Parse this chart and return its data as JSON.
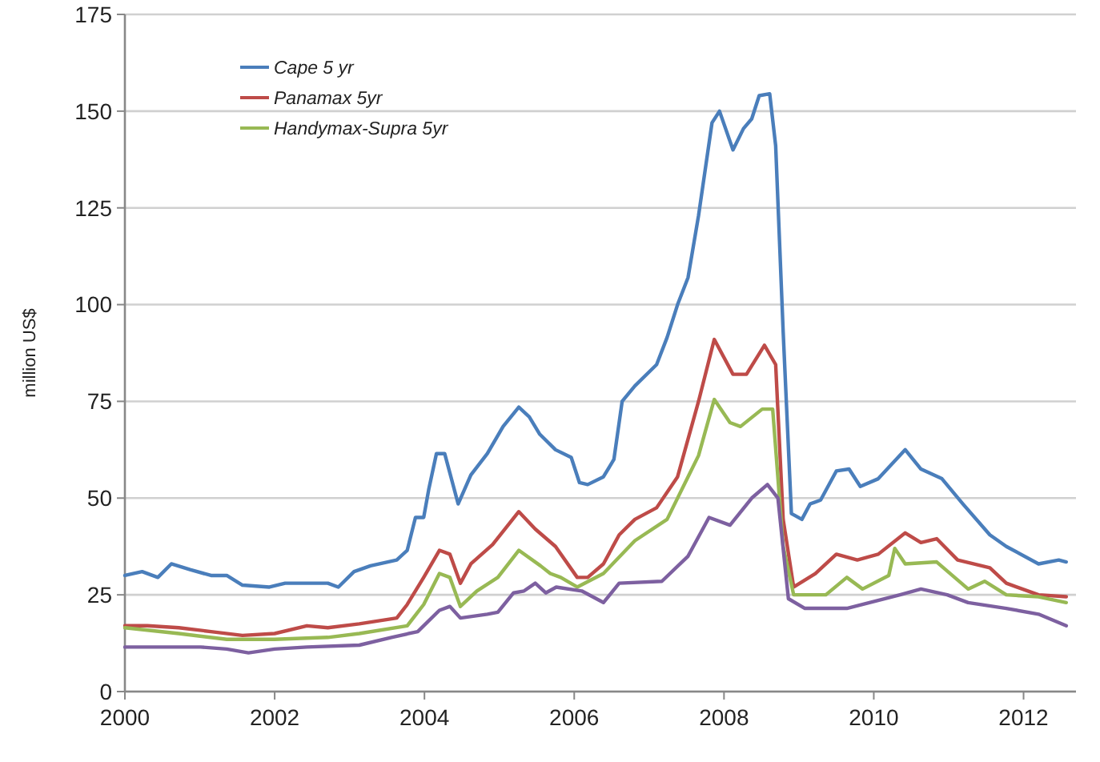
{
  "chart_data": {
    "type": "line",
    "ylabel": "million US$",
    "xlim": [
      2000,
      2012.7
    ],
    "xticks": [
      2000,
      2002,
      2004,
      2006,
      2008,
      2010,
      2012
    ],
    "ylim": [
      0,
      175
    ],
    "yticks": [
      0,
      25,
      50,
      75,
      100,
      125,
      150,
      175
    ],
    "grid": "y",
    "legend": "top left",
    "marker": "none",
    "line_style": "solid",
    "series": [
      {
        "name": "Cape 5 yr",
        "color": "#4a7ebb",
        "x": [
          2000,
          2000.23,
          2000.44,
          2000.62,
          2000.87,
          2001.15,
          2001.36,
          2001.57,
          2001.93,
          2002.14,
          2002.71,
          2002.85,
          2003.06,
          2003.28,
          2003.63,
          2003.77,
          2003.88,
          2003.99,
          2004.06,
          2004.16,
          2004.27,
          2004.45,
          2004.62,
          2004.84,
          2005.05,
          2005.26,
          2005.4,
          2005.54,
          2005.75,
          2005.96,
          2006.07,
          2006.18,
          2006.39,
          2006.53,
          2006.64,
          2006.81,
          2007.1,
          2007.24,
          2007.38,
          2007.52,
          2007.66,
          2007.84,
          2007.94,
          2008.12,
          2008.26,
          2008.37,
          2008.47,
          2008.61,
          2008.69,
          2008.79,
          2008.9,
          2009.04,
          2009.15,
          2009.29,
          2009.5,
          2009.67,
          2009.82,
          2010.06,
          2010.42,
          2010.63,
          2010.91,
          2011.19,
          2011.55,
          2011.77,
          2012.2,
          2012.47,
          2012.57
        ],
        "values": [
          30,
          31,
          29.5,
          33,
          31.5,
          30,
          30,
          27.5,
          27,
          28,
          28,
          27,
          31,
          32.5,
          34,
          36.5,
          45,
          45,
          52.5,
          61.5,
          61.5,
          48.5,
          56,
          61.5,
          68.5,
          73.5,
          71,
          66.5,
          62.5,
          60.5,
          54,
          53.5,
          55.5,
          60,
          75,
          79,
          84.5,
          91.5,
          100,
          107,
          123,
          147,
          150,
          140,
          145.5,
          148,
          154,
          154.5,
          141,
          93,
          46,
          44.5,
          48.5,
          49.5,
          57,
          57.5,
          53,
          55,
          62.5,
          57.5,
          55,
          48.5,
          40.5,
          37.5,
          33,
          34,
          33.5
        ]
      },
      {
        "name": "Panamax 5yr",
        "color": "#be4b48",
        "x": [
          2000,
          2000.3,
          2000.72,
          2001.15,
          2001.57,
          2002,
          2002.43,
          2002.71,
          2003.13,
          2003.63,
          2003.77,
          2003.99,
          2004.2,
          2004.34,
          2004.48,
          2004.62,
          2004.91,
          2005.26,
          2005.48,
          2005.75,
          2006.04,
          2006.18,
          2006.39,
          2006.6,
          2006.81,
          2007.1,
          2007.38,
          2007.66,
          2007.87,
          2008.12,
          2008.3,
          2008.54,
          2008.69,
          2008.79,
          2008.93,
          2009.22,
          2009.5,
          2009.78,
          2010.06,
          2010.42,
          2010.63,
          2010.84,
          2011.12,
          2011.55,
          2011.77,
          2012.2,
          2012.57
        ],
        "values": [
          17,
          17,
          16.5,
          15.5,
          14.5,
          15,
          17,
          16.5,
          17.5,
          19,
          22.5,
          29.5,
          36.5,
          35.5,
          28,
          33,
          38,
          46.5,
          42,
          37.5,
          29.5,
          29.5,
          33,
          40.5,
          44.5,
          47.5,
          55.5,
          75,
          91,
          82,
          82,
          89.5,
          84.5,
          44.5,
          27,
          30.5,
          35.5,
          34,
          35.5,
          41,
          38.5,
          39.5,
          34,
          32,
          28,
          25,
          24.5
        ]
      },
      {
        "name": "Handymax-Supra 5yr",
        "color": "#98b954",
        "x": [
          2000,
          2000.72,
          2001.36,
          2002,
          2002.71,
          2003.13,
          2003.77,
          2003.99,
          2004.2,
          2004.34,
          2004.48,
          2004.7,
          2004.98,
          2005.26,
          2005.55,
          2005.68,
          2005.82,
          2006.04,
          2006.39,
          2006.81,
          2007.24,
          2007.52,
          2007.66,
          2007.87,
          2008.08,
          2008.22,
          2008.51,
          2008.65,
          2008.79,
          2008.93,
          2009.36,
          2009.64,
          2009.85,
          2010.2,
          2010.28,
          2010.42,
          2010.84,
          2011.26,
          2011.48,
          2011.77,
          2012.2,
          2012.57
        ],
        "values": [
          16.5,
          15,
          13.5,
          13.5,
          14,
          15,
          17,
          22.5,
          30.5,
          29.5,
          22,
          26,
          29.5,
          36.5,
          32.5,
          30.5,
          29.5,
          27,
          30.5,
          39,
          44.5,
          55.5,
          61,
          75.5,
          69.5,
          68.5,
          73,
          73,
          37.5,
          25,
          25,
          29.5,
          26.5,
          30,
          37,
          33,
          33.5,
          26.5,
          28.5,
          25,
          24.5,
          23
        ]
      },
      {
        "color": "#7d60a0",
        "x": [
          2000,
          2001.01,
          2001.36,
          2001.65,
          2002,
          2002.43,
          2003.13,
          2003.56,
          2003.91,
          2004.2,
          2004.34,
          2004.48,
          2004.84,
          2004.98,
          2005.19,
          2005.33,
          2005.48,
          2005.62,
          2005.76,
          2006.1,
          2006.39,
          2006.6,
          2007.17,
          2007.52,
          2007.8,
          2008.08,
          2008.37,
          2008.58,
          2008.72,
          2008.86,
          2009.08,
          2009.64,
          2010.35,
          2010.63,
          2010.98,
          2011.26,
          2011.77,
          2012.2,
          2012.57
        ],
        "values": [
          11.5,
          11.5,
          11,
          10,
          11,
          11.5,
          12,
          14,
          15.5,
          21,
          22,
          19,
          20,
          20.5,
          25.5,
          26,
          28,
          25.5,
          27,
          26,
          23,
          28,
          28.5,
          35,
          45,
          43,
          50,
          53.5,
          50,
          24,
          21.5,
          21.5,
          25,
          26.5,
          25,
          23,
          21.5,
          20,
          17
        ]
      }
    ]
  }
}
